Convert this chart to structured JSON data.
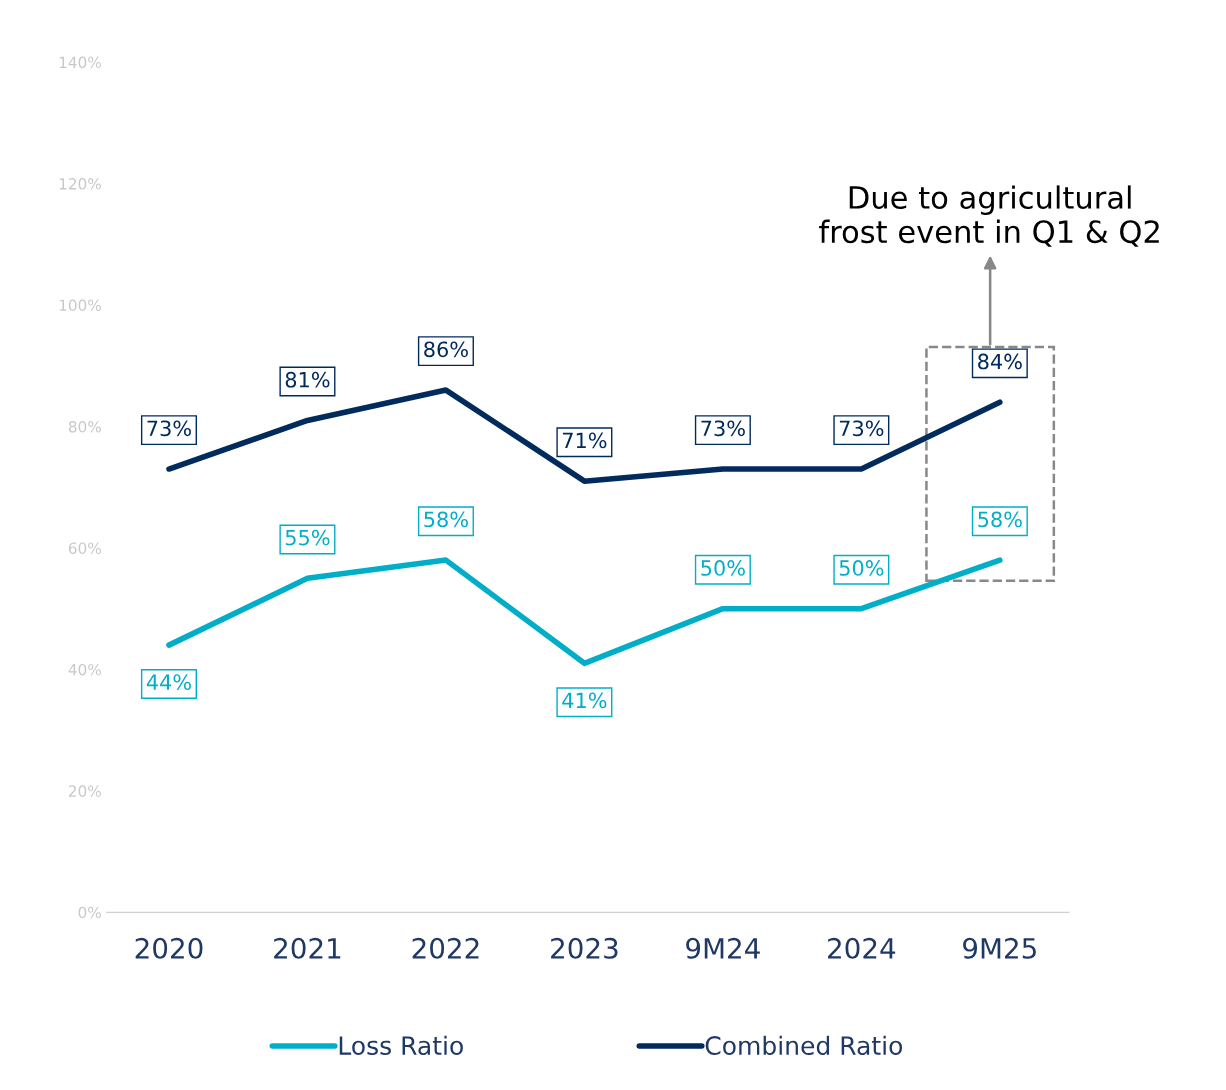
{
  "chart_data": {
    "type": "line",
    "categories": [
      "2020",
      "2021",
      "2022",
      "2023",
      "9M24",
      "2024",
      "9M25"
    ],
    "series": [
      {
        "name": "Loss Ratio",
        "color": "#00aec7",
        "values": [
          44,
          55,
          58,
          41,
          50,
          50,
          58
        ],
        "value_labels": [
          "44%",
          "55%",
          "58%",
          "41%",
          "50%",
          "50%",
          "58%"
        ]
      },
      {
        "name": "Combined Ratio",
        "color": "#002b5c",
        "values": [
          73,
          81,
          86,
          71,
          73,
          73,
          84
        ],
        "value_labels": [
          "73%",
          "81%",
          "86%",
          "71%",
          "73%",
          "73%",
          "84%"
        ]
      }
    ],
    "ylim": [
      0,
      140
    ],
    "yticks": [
      {
        "value": 0,
        "label": "0%"
      },
      {
        "value": 20,
        "label": "20%"
      },
      {
        "value": 40,
        "label": "40%"
      },
      {
        "value": 60,
        "label": "60%"
      },
      {
        "value": 80,
        "label": "80%"
      },
      {
        "value": 100,
        "label": "100%"
      },
      {
        "value": 120,
        "label": "120%"
      },
      {
        "value": 140,
        "label": "140%"
      }
    ],
    "annotations": [
      "Due to agricultural\nfrost event in Q1 & Q2"
    ],
    "grid": false,
    "legend": "bottom",
    "marker": "none",
    "line_style": "solid"
  }
}
